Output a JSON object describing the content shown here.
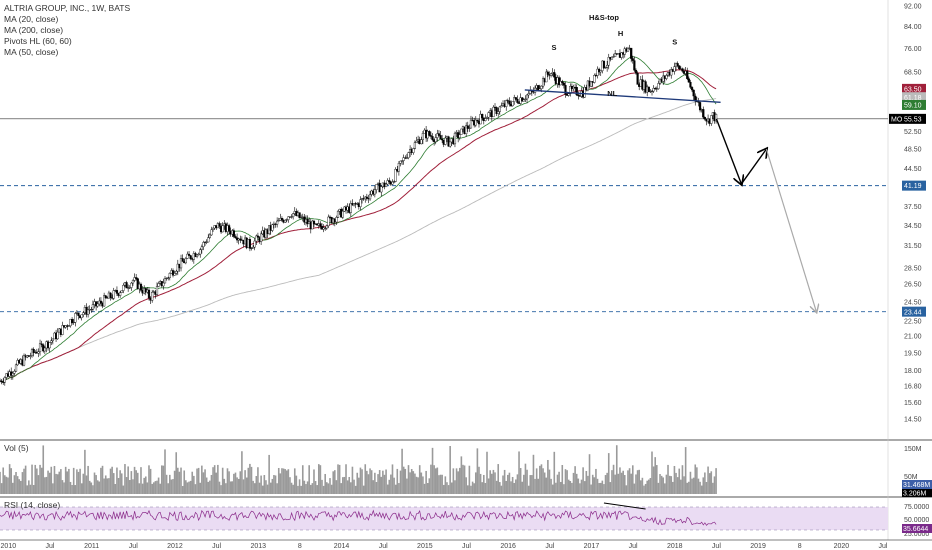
{
  "legend": {
    "title": "ALTRIA GROUP, INC., 1W, BATS",
    "items": [
      "MA (20, close)",
      "MA (200, close)",
      "Pivots HL (60, 60)",
      "MA (50, close)"
    ]
  },
  "volume_label": "Vol (5)",
  "rsi_label": "RSI (14, close)",
  "symbol": "MO",
  "colors": {
    "ma20": "#2e7d32",
    "ma200": "#bbbbbb",
    "ma50": "#a0203a",
    "neckline": "#1f3a7a",
    "projection": "#000000",
    "target_path": "#aaaaaa",
    "level_line": "#2962a0",
    "rsi_band": "#e8d6f0",
    "rsi_line": "#8a2a8a",
    "volume": "#9a9a9a"
  },
  "chart_data": {
    "type": "candlestick",
    "title": "ALTRIA GROUP, INC., 1W, BATS",
    "y_scale": "log",
    "ylim": [
      13.5,
      92
    ],
    "x_ticks": [
      "2010",
      "Jul",
      "2011",
      "Jul",
      "2012",
      "Jul",
      "2013",
      "8",
      "2014",
      "Jul",
      "2015",
      "Jul",
      "2016",
      "Jul",
      "2017",
      "Jul",
      "2018",
      "Jul",
      "2019",
      "8",
      "2020",
      "Jul"
    ],
    "y_ticks": [
      "92.00",
      "84.00",
      "76.00",
      "68.50",
      "63.50",
      "61.18",
      "59.10",
      "55.53",
      "52.50",
      "48.50",
      "44.50",
      "41.19",
      "37.50",
      "34.50",
      "31.50",
      "28.50",
      "26.50",
      "24.50",
      "23.44",
      "22.50",
      "21.00",
      "19.50",
      "18.00",
      "16.80",
      "15.60",
      "14.50"
    ],
    "price_path": [
      {
        "t": 2009.9,
        "v": 17.2
      },
      {
        "t": 2010.2,
        "v": 19.0
      },
      {
        "t": 2010.5,
        "v": 20.5
      },
      {
        "t": 2010.8,
        "v": 23.0
      },
      {
        "t": 2011.0,
        "v": 23.8
      },
      {
        "t": 2011.3,
        "v": 25.5
      },
      {
        "t": 2011.5,
        "v": 27.0
      },
      {
        "t": 2011.7,
        "v": 25.0
      },
      {
        "t": 2012.0,
        "v": 28.5
      },
      {
        "t": 2012.3,
        "v": 31.0
      },
      {
        "t": 2012.5,
        "v": 34.5
      },
      {
        "t": 2012.7,
        "v": 33.5
      },
      {
        "t": 2012.9,
        "v": 31.5
      },
      {
        "t": 2013.2,
        "v": 34.5
      },
      {
        "t": 2013.4,
        "v": 36.5
      },
      {
        "t": 2013.7,
        "v": 34.0
      },
      {
        "t": 2014.0,
        "v": 36.5
      },
      {
        "t": 2014.2,
        "v": 38.0
      },
      {
        "t": 2014.4,
        "v": 40.5
      },
      {
        "t": 2014.6,
        "v": 42.0
      },
      {
        "t": 2014.8,
        "v": 48.0
      },
      {
        "t": 2015.0,
        "v": 52.0
      },
      {
        "t": 2015.3,
        "v": 50.0
      },
      {
        "t": 2015.6,
        "v": 55.0
      },
      {
        "t": 2015.8,
        "v": 57.0
      },
      {
        "t": 2016.0,
        "v": 59.5
      },
      {
        "t": 2016.3,
        "v": 62.5
      },
      {
        "t": 2016.5,
        "v": 68.5
      },
      {
        "t": 2016.7,
        "v": 63.0
      },
      {
        "t": 2016.9,
        "v": 62.5
      },
      {
        "t": 2017.1,
        "v": 70.0
      },
      {
        "t": 2017.3,
        "v": 73.0
      },
      {
        "t": 2017.45,
        "v": 76.5
      },
      {
        "t": 2017.55,
        "v": 66.0
      },
      {
        "t": 2017.7,
        "v": 63.0
      },
      {
        "t": 2017.85,
        "v": 66.0
      },
      {
        "t": 2018.0,
        "v": 70.5
      },
      {
        "t": 2018.1,
        "v": 69.0
      },
      {
        "t": 2018.2,
        "v": 63.5
      },
      {
        "t": 2018.3,
        "v": 58.5
      },
      {
        "t": 2018.4,
        "v": 55.0
      },
      {
        "t": 2018.45,
        "v": 56.5
      },
      {
        "t": 2018.5,
        "v": 55.53
      }
    ],
    "annotations": [
      {
        "label": "H&S-top",
        "t": 2017.15,
        "v": 86.5
      },
      {
        "label": "S",
        "t": 2016.55,
        "v": 75.5
      },
      {
        "label": "H",
        "t": 2017.35,
        "v": 80.5
      },
      {
        "label": "S",
        "t": 2018.0,
        "v": 77.5
      },
      {
        "label": "NL",
        "t": 2017.25,
        "v": 61.5
      }
    ],
    "neckline": {
      "start": {
        "t": 2016.2,
        "v": 63.2
      },
      "end": {
        "t": 2018.55,
        "v": 59.8
      }
    },
    "projection_path": [
      {
        "t": 2018.5,
        "v": 55.53
      },
      {
        "t": 2018.8,
        "v": 41.5
      },
      {
        "t": 2019.1,
        "v": 48.5
      }
    ],
    "target_path": [
      {
        "t": 2019.1,
        "v": 48.5
      },
      {
        "t": 2019.7,
        "v": 23.44
      }
    ],
    "levels": [
      41.19,
      23.44
    ],
    "last_price": 55.53,
    "price_tags": [
      {
        "value": "63.50",
        "color": "#a0203a"
      },
      {
        "value": "61.18",
        "color": "#bbbbbb"
      },
      {
        "value": "59.10",
        "color": "#2e7d32"
      },
      {
        "value": "55.53",
        "color": "#000000"
      },
      {
        "value": "41.19",
        "color": "#2962a0"
      },
      {
        "value": "23.44",
        "color": "#2962a0"
      }
    ],
    "volume": {
      "label": "Vol (5)",
      "ticks": [
        "150M",
        "50M"
      ],
      "tags": [
        "31.468M",
        "3.206M"
      ]
    },
    "rsi": {
      "label": "RSI (14, close)",
      "ticks": [
        "75.0000",
        "50.0000",
        "25.0000"
      ],
      "last": "35.6644",
      "band": [
        30,
        70
      ]
    }
  }
}
